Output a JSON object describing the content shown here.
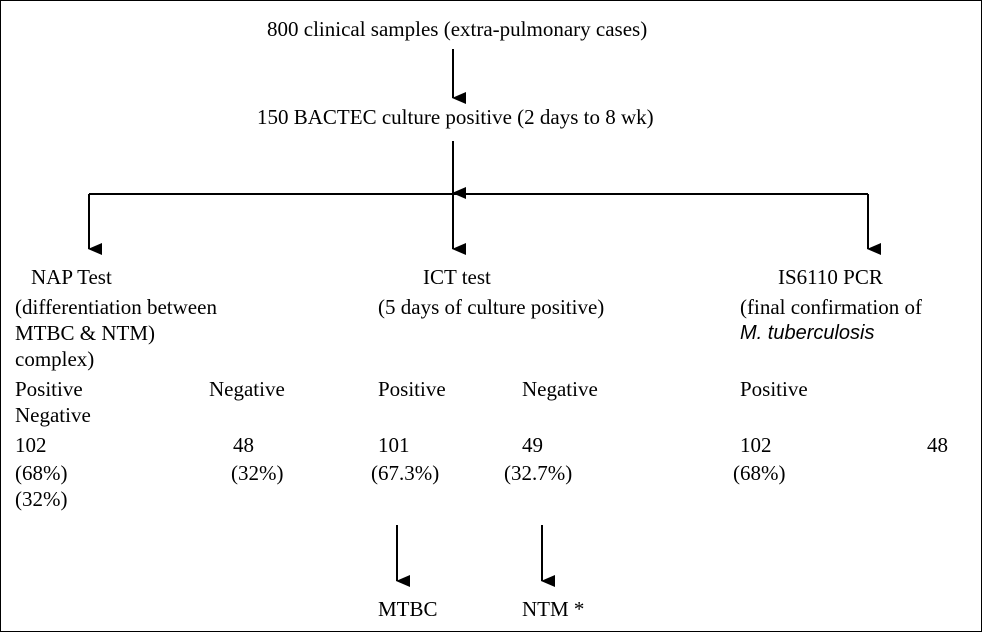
{
  "title": "800 clinical samples (extra-pulmonary cases)",
  "step2": "150 BACTEC culture positive (2 days to 8 wk)",
  "nap": {
    "line1": "NAP Test",
    "line2": "(differentiation between",
    "line3": "MTBC & NTM)",
    "line4": "complex)",
    "pos_label": "Positive",
    "neg_label": "Negative",
    "neg_label_2": "Negative",
    "pos_count": "102",
    "neg_count": "48",
    "pos_pct": "(68%)",
    "neg_pct": "(32%)",
    "neg_pct_2": "(32%)"
  },
  "ict": {
    "line1": "ICT test",
    "line2": "(5 days of culture positive)",
    "pos_label": "Positive",
    "neg_label": "Negative",
    "pos_count": "101",
    "neg_count": "49",
    "pos_pct": "(67.3%)",
    "neg_pct": "(32.7%)",
    "mtbc": "MTBC",
    "ntm": "NTM *"
  },
  "pcr": {
    "line1": "IS6110 PCR",
    "line2": "(final confirmation of",
    "line3": "M. tuberculosis",
    "pos_label": "Positive",
    "pos_count": "102",
    "neg_count": "48",
    "pos_pct": "(68%)"
  },
  "colors": {
    "line": "#000000",
    "text": "#000000",
    "background": "#ffffff"
  }
}
